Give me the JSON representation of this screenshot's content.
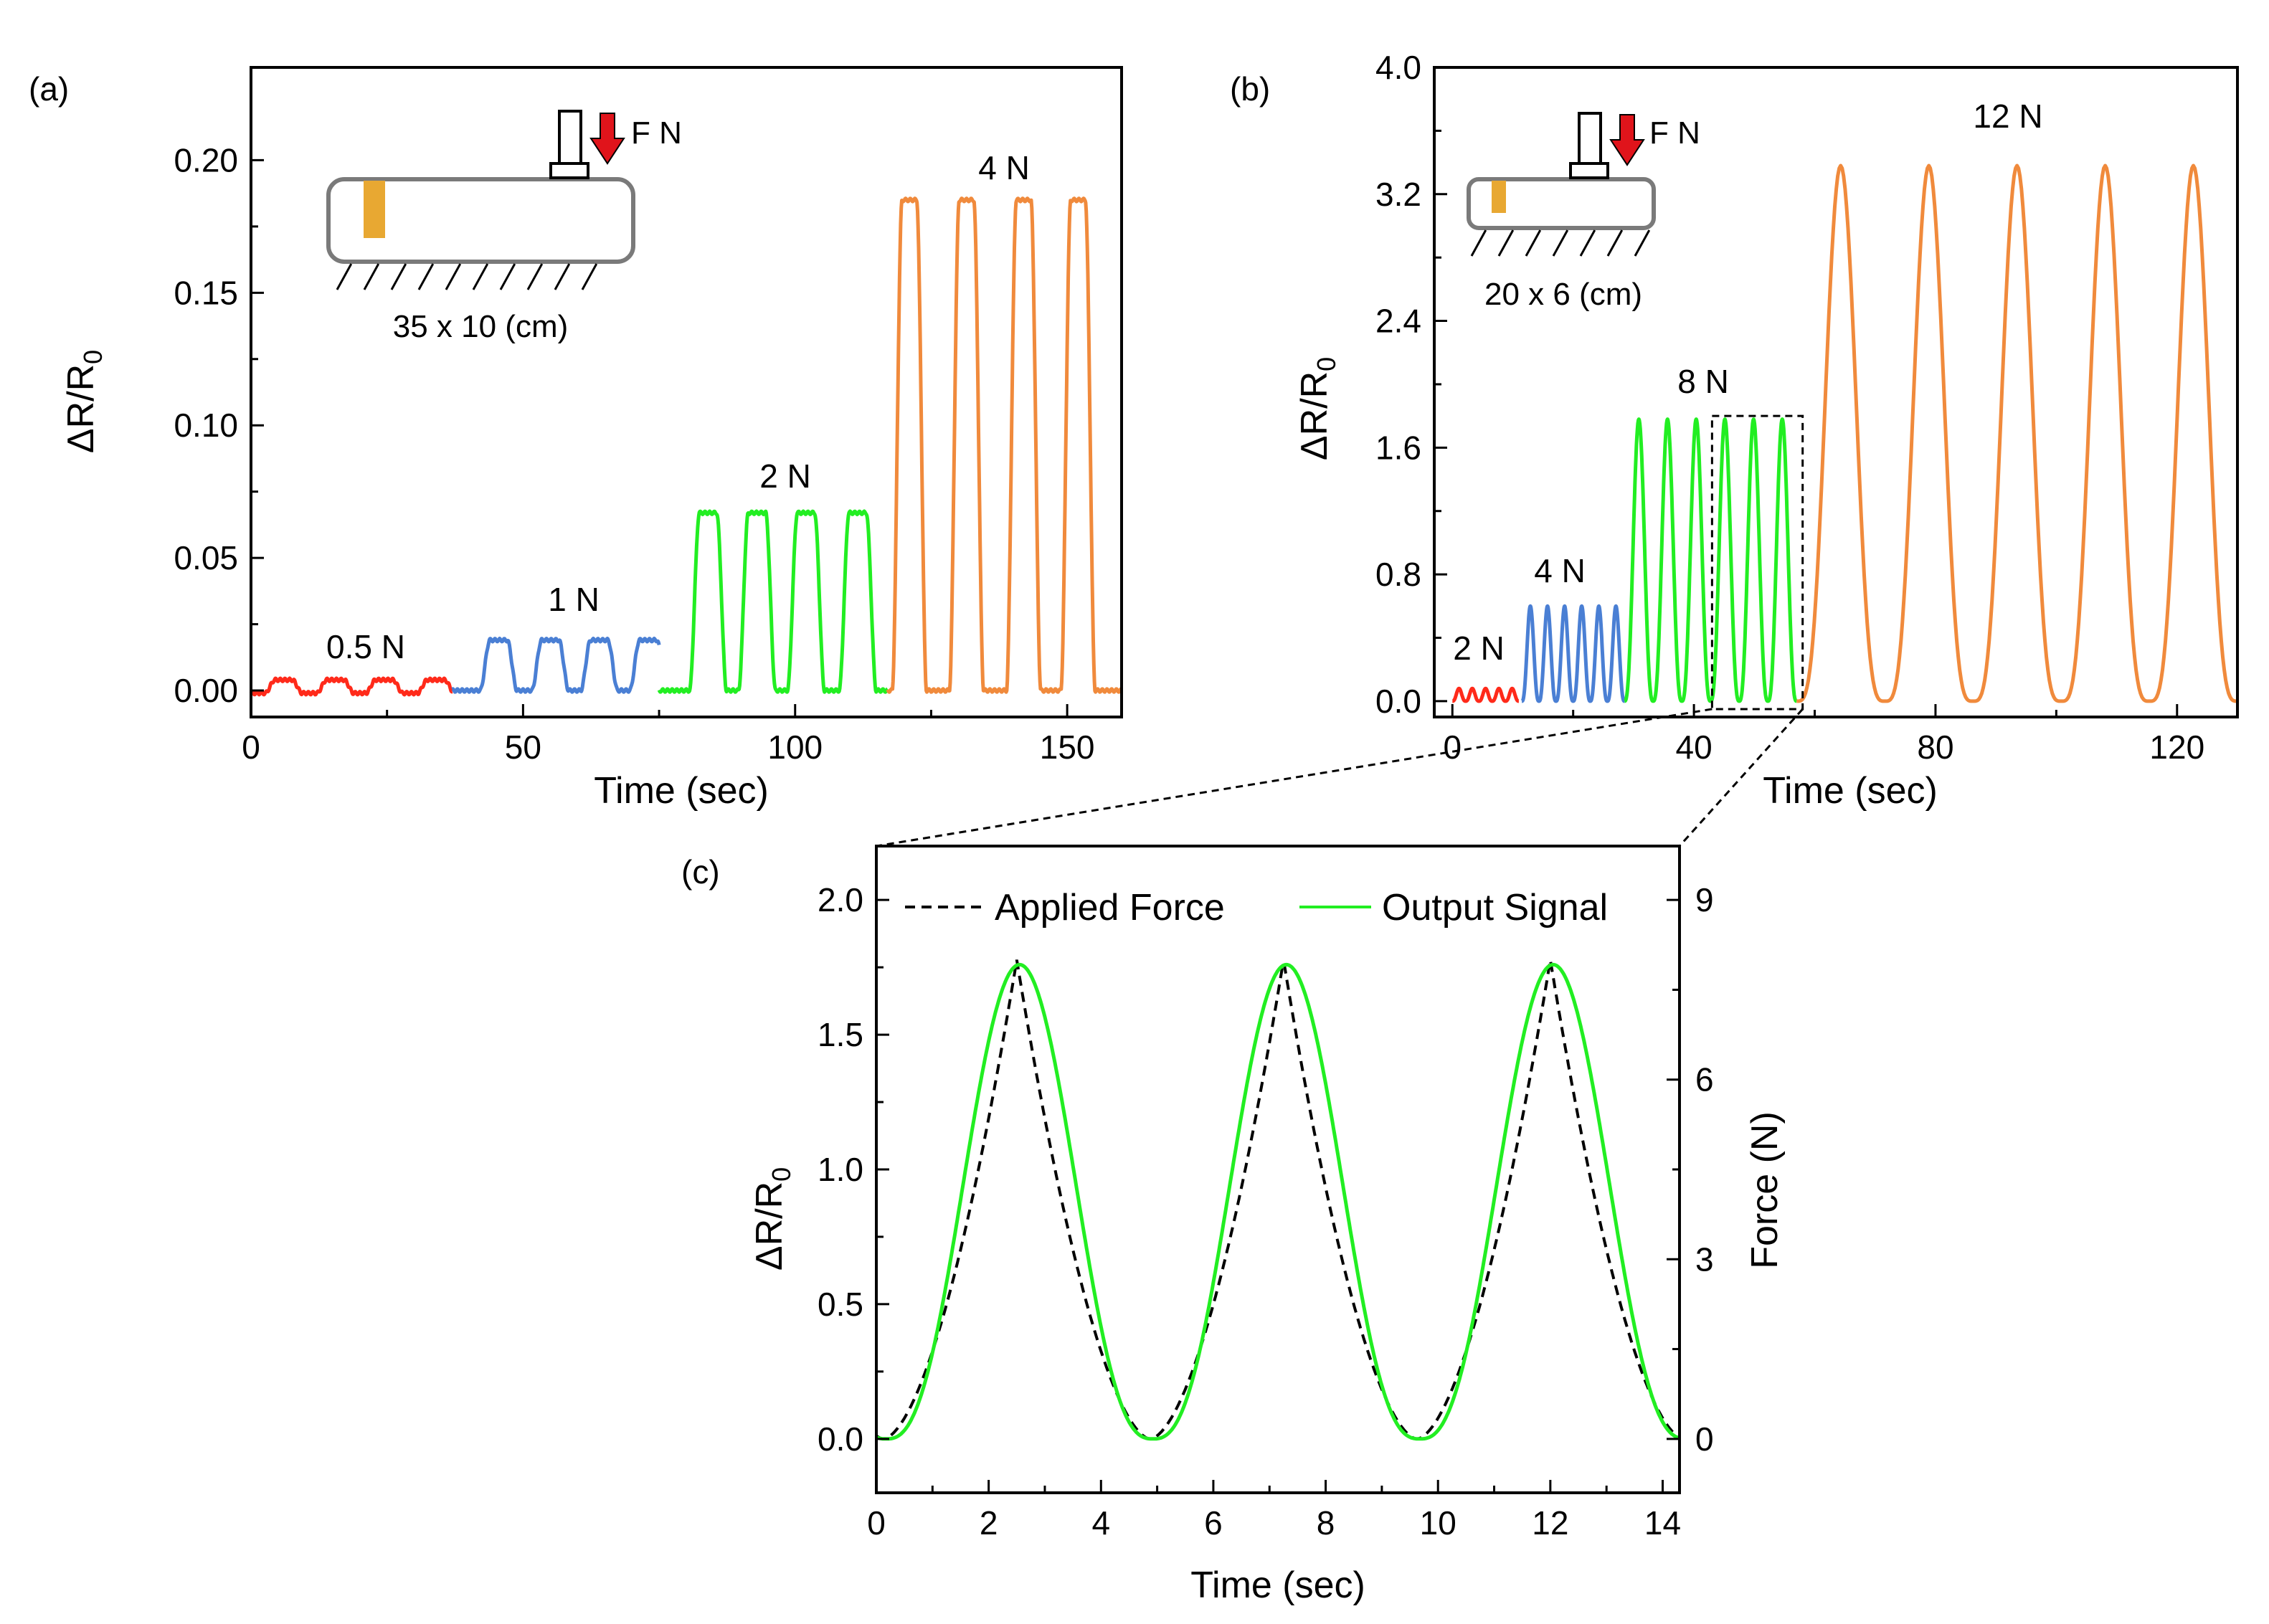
{
  "chart_data": [
    {
      "panel": "(a)",
      "type": "line",
      "title": "",
      "xlabel": "Time (sec)",
      "ylabel": "ΔR/R",
      "ylabel_sub": "0",
      "xlim": [
        0,
        160
      ],
      "ylim": [
        -0.01,
        0.235
      ],
      "xticks": [
        0,
        50,
        100,
        150
      ],
      "yticks": [
        0.0,
        0.05,
        0.1,
        0.15,
        0.2
      ],
      "ytick_labels": [
        "0.00",
        "0.05",
        "0.10",
        "0.15",
        "0.20"
      ],
      "colors": {
        "red": "#ff2a1a",
        "blue": "#4a7fd4",
        "green": "#22ee22",
        "orange": "#f08a3c"
      },
      "series": [
        {
          "name": "0.5 N",
          "color": "#ff2a1a",
          "t_start": 0,
          "t_end": 37,
          "baseline": -0.001,
          "peak": 0.004,
          "peak_times": [
            6,
            15.5,
            24.5,
            34
          ],
          "pulse_width": 5
        },
        {
          "name": "1 N",
          "color": "#4a7fd4",
          "t_start": 37,
          "t_end": 75,
          "baseline": 0.0,
          "peak": 0.019,
          "peak_times": [
            45.5,
            55,
            64,
            73
          ],
          "pulse_width": 5
        },
        {
          "name": "2 N",
          "color": "#22ee22",
          "t_start": 75,
          "t_end": 117,
          "baseline": 0.0,
          "peak": 0.067,
          "peak_times": [
            84,
            93,
            102,
            111.5
          ],
          "pulse_width": 5
        },
        {
          "name": "4 N",
          "color": "#f08a3c",
          "t_start": 117,
          "t_end": 160,
          "baseline": 0.0,
          "peak": 0.185,
          "peak_times": [
            121,
            131.5,
            142,
            152
          ],
          "pulse_width": 4.5
        }
      ],
      "inset": {
        "force_label": "F N",
        "size_label": "35 x 10 (cm)"
      }
    },
    {
      "panel": "(b)",
      "type": "line",
      "title": "",
      "xlabel": "Time (sec)",
      "ylabel": "ΔR/R",
      "ylabel_sub": "0",
      "xlim": [
        -3,
        130
      ],
      "ylim": [
        -0.1,
        4.0
      ],
      "xticks": [
        0,
        40,
        80,
        120
      ],
      "yticks": [
        0.0,
        0.8,
        1.6,
        2.4,
        3.2,
        4.0
      ],
      "ytick_labels": [
        "0.0",
        "0.8",
        "1.6",
        "2.4",
        "3.2",
        "4.0"
      ],
      "series": [
        {
          "name": "2 N",
          "color": "#ff2a1a",
          "t_start": 0,
          "t_end": 11,
          "peak": 0.08,
          "cycles": 5,
          "period": 2.2
        },
        {
          "name": "4 N",
          "color": "#4a7fd4",
          "t_start": 11.5,
          "t_end": 28.5,
          "peak": 0.6,
          "cycles": 6,
          "period": 2.85
        },
        {
          "name": "8 N",
          "color": "#22ee22",
          "t_start": 28.5,
          "t_end": 57,
          "peak": 1.78,
          "cycles": 6,
          "period": 4.75
        },
        {
          "name": "12 N",
          "color": "#f08a3c",
          "t_start": 57,
          "t_end": 130,
          "peak": 3.38,
          "cycles": 5,
          "period": 14.5
        }
      ],
      "zoom_box": {
        "x_range": [
          43,
          58
        ],
        "y_range": [
          -0.05,
          1.8
        ]
      },
      "inset": {
        "force_label": "F N",
        "size_label": "20 x 6 (cm)"
      }
    },
    {
      "panel": "(c)",
      "type": "line",
      "title": "",
      "xlabel": "Time (sec)",
      "ylabel": "ΔR/R",
      "ylabel_sub": "0",
      "ylabel_right": "Force (N)",
      "xlim": [
        0,
        14.3
      ],
      "ylim": [
        -0.2,
        2.2
      ],
      "ylim_right": [
        -0.9,
        9.9
      ],
      "xticks": [
        0,
        2,
        4,
        6,
        8,
        10,
        12,
        14
      ],
      "yticks": [
        0.0,
        0.5,
        1.0,
        1.5,
        2.0
      ],
      "ytick_labels": [
        "0.0",
        "0.5",
        "1.0",
        "1.5",
        "2.0"
      ],
      "yticks_right": [
        0,
        3,
        6,
        9
      ],
      "series": [
        {
          "name": "Applied Force",
          "style": "dashed",
          "color": "#000000",
          "axis": "right",
          "peak": 8,
          "period": 4.75,
          "phase": 2.5
        },
        {
          "name": "Output Signal",
          "style": "solid",
          "color": "#22ee22",
          "axis": "left",
          "peak": 1.76,
          "period": 4.75,
          "phase": 2.55
        }
      ],
      "legend": {
        "placement": "top"
      }
    }
  ]
}
